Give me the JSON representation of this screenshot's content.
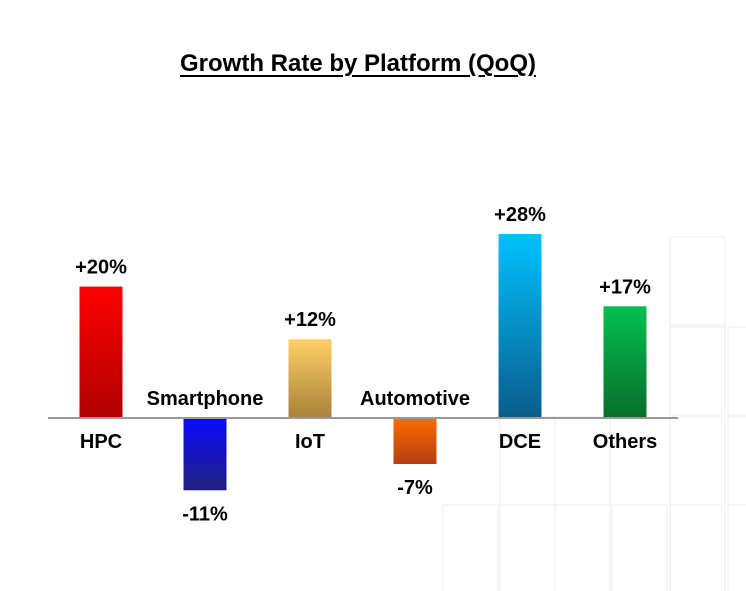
{
  "chart_data": {
    "type": "bar",
    "title": "Growth Rate by Platform (QoQ)",
    "xlabel": "",
    "ylabel": "",
    "categories": [
      "HPC",
      "Smartphone",
      "IoT",
      "Automotive",
      "DCE",
      "Others"
    ],
    "values": [
      20,
      -11,
      12,
      -7,
      28,
      17
    ],
    "data_labels": [
      "+20%",
      "-11%",
      "+12%",
      "-7%",
      "+28%",
      "+17%"
    ],
    "unit": "%",
    "ylim": [
      -15,
      30
    ],
    "grid": false,
    "legend": "none",
    "colors": {
      "HPC": [
        "#ff0000",
        "#b00000"
      ],
      "Smartphone": [
        "#0a0aff",
        "#20207a"
      ],
      "IoT": [
        "#ffd066",
        "#a8813a"
      ],
      "Automotive": [
        "#ff6a00",
        "#b34010"
      ],
      "DCE": [
        "#00c2ff",
        "#0a5c8c"
      ],
      "Others": [
        "#00c050",
        "#0a6e2a"
      ],
      "axis": "#999999",
      "text": "#000000"
    }
  }
}
